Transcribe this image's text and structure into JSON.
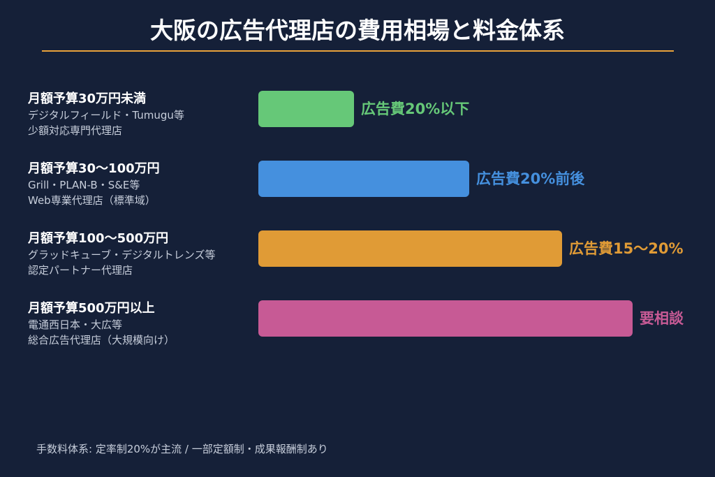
{
  "chart_data": {
    "type": "bar",
    "orientation": "horizontal",
    "title": "大阪の広告代理店の費用相場と料金体系",
    "categories": [
      {
        "title": "月額予算30万円未満",
        "line1": "デジタルフィールド・Tumugu等",
        "line2": "少額対応専門代理店",
        "value_label": "広告費20%以下",
        "value": 0.218,
        "color": "#66c878"
      },
      {
        "title": "月額予算30〜100万円",
        "line1": "Grill・PLAN-B・S&E等",
        "line2": "Web専業代理店（標準域）",
        "value_label": "広告費20%前後",
        "value": 0.48,
        "color": "#4590de"
      },
      {
        "title": "月額予算100〜500万円",
        "line1": "グラッドキューブ・デジタルトレンズ等",
        "line2": "認定パートナー代理店",
        "value_label": "広告費15〜20%",
        "value": 0.69,
        "color": "#e09b36"
      },
      {
        "title": "月額予算500万円以上",
        "line1": "電通西日本・大広等",
        "line2": "総合広告代理店（大規模向け）",
        "value_label": "要相談",
        "value": 0.85,
        "color": "#c75a95"
      }
    ],
    "footnote": "手数料体系: 定率制20%が主流 / 一部定額制・成果報酬制あり"
  }
}
